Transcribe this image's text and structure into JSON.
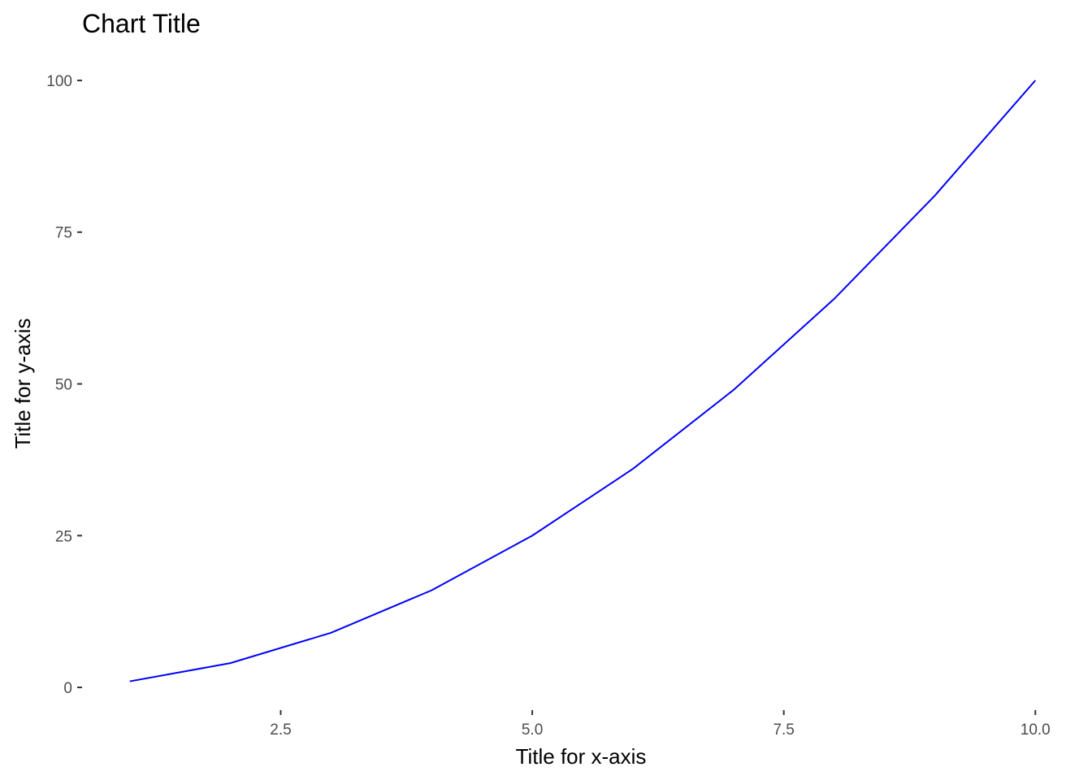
{
  "chart_data": {
    "type": "line",
    "title": "Chart Title",
    "xlabel": "Title for x-axis",
    "ylabel": "Title for y-axis",
    "xlim": [
      0.55,
      10.45
    ],
    "ylim": [
      -4.95,
      104.95
    ],
    "x_ticks": [
      2.5,
      5.0,
      7.5,
      10.0
    ],
    "x_tick_labels": [
      "2.5",
      "5.0",
      "7.5",
      "10.0"
    ],
    "y_ticks": [
      0,
      25,
      50,
      75,
      100
    ],
    "y_tick_labels": [
      "0",
      "25",
      "50",
      "75",
      "100"
    ],
    "grid": false,
    "legend": "none",
    "series": [
      {
        "color": "#0000ff",
        "x": [
          1,
          2,
          3,
          4,
          5,
          6,
          7,
          8,
          9,
          10
        ],
        "y": [
          1,
          4,
          9,
          16,
          25,
          36,
          49,
          64,
          81,
          100
        ]
      }
    ]
  }
}
